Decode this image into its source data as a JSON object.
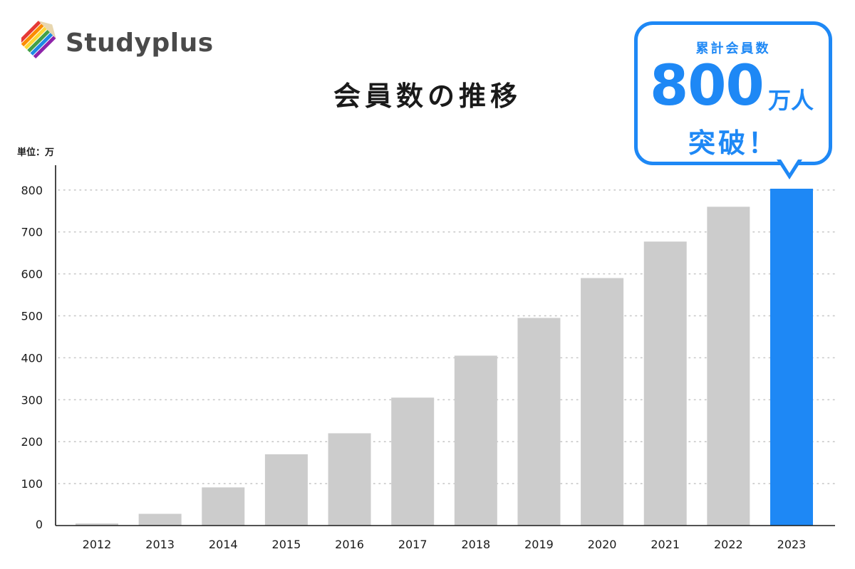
{
  "brand": {
    "name": "Studyplus",
    "text_color": "#4a4a4a",
    "icon": "pencil-stripes-icon"
  },
  "title": "会員数の推移",
  "unit_label": "単位：万",
  "callout": {
    "label": "累計会員数",
    "number": "800",
    "unit": "万人",
    "suffix": "突破！",
    "color": "#1e88f5"
  },
  "colors": {
    "bar": "#cccccc",
    "highlight": "#1e88f5",
    "grid": "#c8c8c8",
    "axis": "#1a1a1a"
  },
  "chart_data": {
    "type": "bar",
    "title": "会員数の推移",
    "ylabel": "単位：万",
    "xlabel": "",
    "categories": [
      "2012",
      "2013",
      "2014",
      "2015",
      "2016",
      "2017",
      "2018",
      "2019",
      "2020",
      "2021",
      "2022",
      "2023"
    ],
    "values": [
      5,
      28,
      91,
      170,
      220,
      305,
      405,
      495,
      590,
      677,
      760,
      803
    ],
    "highlight_index": 11,
    "yticks": [
      0,
      100,
      200,
      300,
      400,
      500,
      600,
      700,
      800
    ],
    "ylim": [
      0,
      803
    ],
    "grid": "dotted horizontal",
    "legend": "none"
  }
}
